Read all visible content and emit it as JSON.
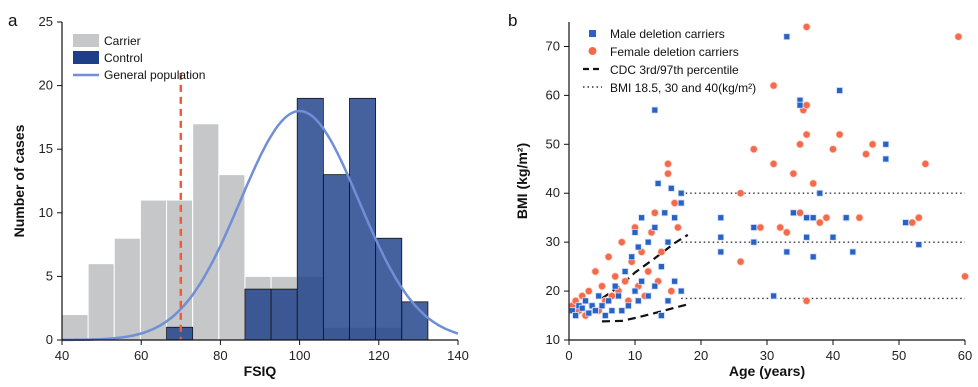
{
  "panels": {
    "a": "a",
    "b": "b"
  },
  "chart_data": [
    {
      "type": "bar",
      "xlabel": "FSIQ",
      "ylabel": "Number of cases",
      "xlim": [
        40,
        140
      ],
      "ylim": [
        0,
        25
      ],
      "xticks": [
        40,
        60,
        80,
        100,
        120,
        140
      ],
      "yticks": [
        0,
        5,
        10,
        15,
        20,
        25
      ],
      "bin_width": 6.6,
      "threshold": 70,
      "legend": [
        "Carrier",
        "Control",
        "General population"
      ],
      "legend_position": "top-left",
      "colors": {
        "carrier": "#c6c7c8",
        "control": "#1c3f8a",
        "curve": "#6f8fd6",
        "threshold": "#f15a3b"
      },
      "series": [
        {
          "name": "Carrier",
          "bins": [
            {
              "start": 40.0,
              "count": 2
            },
            {
              "start": 46.6,
              "count": 6
            },
            {
              "start": 53.2,
              "count": 8
            },
            {
              "start": 59.8,
              "count": 11
            },
            {
              "start": 66.4,
              "count": 11
            },
            {
              "start": 73.0,
              "count": 17
            },
            {
              "start": 79.6,
              "count": 13
            },
            {
              "start": 86.2,
              "count": 5
            },
            {
              "start": 92.8,
              "count": 5
            },
            {
              "start": 99.4,
              "count": 5
            },
            {
              "start": 106.0,
              "count": 1
            },
            {
              "start": 112.6,
              "count": 1
            },
            {
              "start": 119.2,
              "count": 1
            }
          ]
        },
        {
          "name": "Control",
          "bins": [
            {
              "start": 66.4,
              "count": 1
            },
            {
              "start": 86.2,
              "count": 4
            },
            {
              "start": 92.8,
              "count": 4
            },
            {
              "start": 99.4,
              "count": 19
            },
            {
              "start": 106.0,
              "count": 13
            },
            {
              "start": 112.6,
              "count": 19
            },
            {
              "start": 119.2,
              "count": 8
            },
            {
              "start": 125.8,
              "count": 3
            }
          ]
        },
        {
          "name": "General population",
          "curve": {
            "mean": 100,
            "sd": 15,
            "peak": 18
          }
        }
      ]
    },
    {
      "type": "scatter",
      "xlabel": "Age (years)",
      "ylabel": "BMI (kg/m²)",
      "xlim": [
        0,
        60
      ],
      "ylim": [
        10,
        75
      ],
      "xticks": [
        0,
        10,
        20,
        30,
        40,
        50,
        60
      ],
      "yticks": [
        10,
        20,
        30,
        40,
        50,
        60,
        70
      ],
      "legend": [
        "Male deletion carriers",
        "Female deletion carriers",
        "CDC 3rd/97th percentile",
        "BMI 18.5, 30 and 40(kg/m²)"
      ],
      "legend_position": "top-left",
      "colors": {
        "male": "#2a62c4",
        "female": "#f36b4c"
      },
      "reference_bmi": [
        18.5,
        30,
        40
      ],
      "reference_age_range": [
        17,
        60
      ],
      "cdc_3rd": [
        [
          5,
          13.8
        ],
        [
          8,
          13.9
        ],
        [
          10,
          14.5
        ],
        [
          13,
          15.5
        ],
        [
          16,
          16.6
        ],
        [
          18,
          17.3
        ]
      ],
      "cdc_97th": [
        [
          5,
          18.5
        ],
        [
          8,
          21.3
        ],
        [
          10,
          23.8
        ],
        [
          13,
          26.7
        ],
        [
          16,
          29.8
        ],
        [
          18,
          31.5
        ]
      ],
      "series": [
        {
          "name": "Male deletion carriers",
          "points": [
            [
              0.5,
              16
            ],
            [
              1,
              15
            ],
            [
              1.5,
              17
            ],
            [
              2,
              16.5
            ],
            [
              2.5,
              18
            ],
            [
              3,
              15.5
            ],
            [
              3.5,
              17
            ],
            [
              4,
              16
            ],
            [
              4.5,
              19
            ],
            [
              5,
              17
            ],
            [
              5.5,
              15
            ],
            [
              6,
              18
            ],
            [
              6.5,
              16
            ],
            [
              7,
              21
            ],
            [
              7.5,
              19
            ],
            [
              8,
              16
            ],
            [
              8.5,
              24
            ],
            [
              9,
              17
            ],
            [
              9.5,
              27
            ],
            [
              10,
              20
            ],
            [
              10,
              32
            ],
            [
              10.5,
              18
            ],
            [
              10.5,
              29
            ],
            [
              11,
              22
            ],
            [
              11,
              35
            ],
            [
              12,
              19
            ],
            [
              12,
              30
            ],
            [
              13,
              21
            ],
            [
              13,
              33
            ],
            [
              13,
              57
            ],
            [
              13.5,
              42
            ],
            [
              14,
              15
            ],
            [
              14,
              25
            ],
            [
              14.5,
              36
            ],
            [
              15,
              18
            ],
            [
              15,
              30
            ],
            [
              15.5,
              41
            ],
            [
              16,
              22
            ],
            [
              16,
              35
            ],
            [
              17,
              20
            ],
            [
              17,
              38
            ],
            [
              17,
              40
            ],
            [
              23,
              35
            ],
            [
              23,
              31
            ],
            [
              23,
              28
            ],
            [
              28,
              33
            ],
            [
              28,
              30
            ],
            [
              31,
              19
            ],
            [
              33,
              72
            ],
            [
              33,
              28
            ],
            [
              34,
              36
            ],
            [
              35,
              59
            ],
            [
              35,
              58
            ],
            [
              36,
              35
            ],
            [
              36,
              31
            ],
            [
              37,
              35
            ],
            [
              37,
              27
            ],
            [
              38,
              40
            ],
            [
              40,
              31
            ],
            [
              41,
              61
            ],
            [
              42,
              35
            ],
            [
              43,
              28
            ],
            [
              48,
              50
            ],
            [
              48,
              47
            ],
            [
              51,
              34
            ],
            [
              53,
              29.5
            ]
          ]
        },
        {
          "name": "Female deletion carriers",
          "points": [
            [
              0.5,
              17
            ],
            [
              1,
              18
            ],
            [
              1.5,
              16
            ],
            [
              2,
              19
            ],
            [
              2.5,
              15
            ],
            [
              3,
              20
            ],
            [
              3.5,
              17
            ],
            [
              4,
              24
            ],
            [
              4.5,
              16
            ],
            [
              5,
              21
            ],
            [
              5.5,
              18
            ],
            [
              6,
              27
            ],
            [
              6.5,
              19
            ],
            [
              7,
              23
            ],
            [
              7.5,
              20
            ],
            [
              8,
              30
            ],
            [
              8.5,
              22
            ],
            [
              9,
              18
            ],
            [
              9.5,
              26
            ],
            [
              10,
              33
            ],
            [
              10.5,
              21
            ],
            [
              11,
              28
            ],
            [
              11.5,
              19
            ],
            [
              12,
              24
            ],
            [
              12.5,
              32
            ],
            [
              13,
              36
            ],
            [
              13.5,
              22
            ],
            [
              14,
              28
            ],
            [
              15,
              44
            ],
            [
              15,
              46
            ],
            [
              15.5,
              20
            ],
            [
              16,
              38
            ],
            [
              16.5,
              33
            ],
            [
              26,
              40
            ],
            [
              26,
              26
            ],
            [
              28,
              49
            ],
            [
              29,
              33
            ],
            [
              31,
              62
            ],
            [
              31,
              46
            ],
            [
              32,
              33
            ],
            [
              33,
              32
            ],
            [
              34,
              44
            ],
            [
              35,
              50
            ],
            [
              35,
              36
            ],
            [
              35.5,
              57
            ],
            [
              36,
              74
            ],
            [
              36,
              52
            ],
            [
              36,
              58
            ],
            [
              36,
              35
            ],
            [
              36,
              18
            ],
            [
              37,
              42
            ],
            [
              38,
              34
            ],
            [
              39,
              35
            ],
            [
              40,
              49
            ],
            [
              41,
              52
            ],
            [
              42,
              35
            ],
            [
              44,
              35
            ],
            [
              45,
              48
            ],
            [
              46,
              50
            ],
            [
              52,
              34
            ],
            [
              53,
              35
            ],
            [
              54,
              46
            ],
            [
              59,
              72
            ],
            [
              60,
              23
            ]
          ]
        }
      ]
    }
  ]
}
